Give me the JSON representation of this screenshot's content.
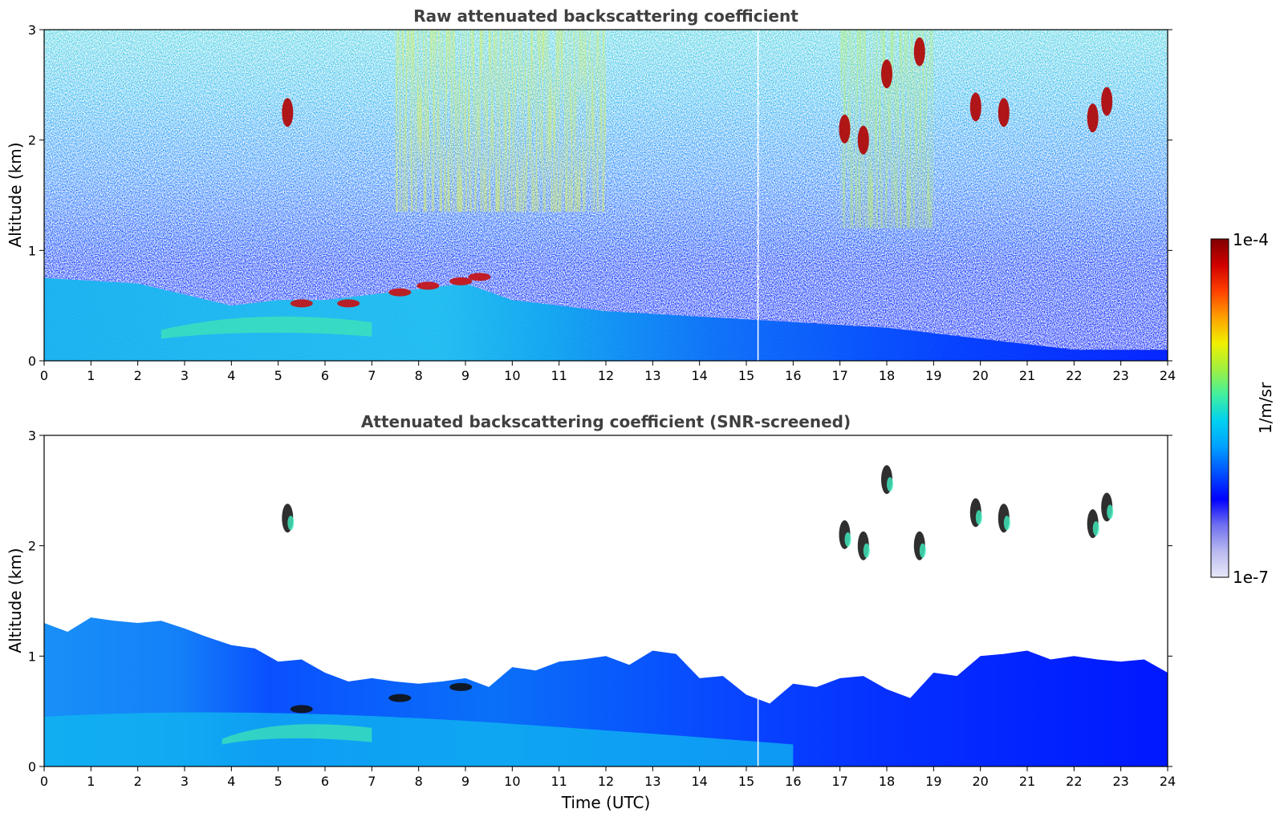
{
  "colorbar": {
    "max_label": "1e-4",
    "min_label": "1e-7",
    "unit_label": "1/m/sr",
    "stops": [
      "#e8e8f8",
      "#b8b8f0",
      "#7070f0",
      "#0000ff",
      "#0050ff",
      "#00a0ff",
      "#00d0f0",
      "#40f0a0",
      "#a0f040",
      "#f0f000",
      "#ffa000",
      "#ff4000",
      "#d00000",
      "#800000"
    ]
  },
  "chart_data": [
    {
      "type": "heatmap",
      "title": "Raw attenuated backscattering coefficient",
      "xlabel": "",
      "ylabel": "Altitude (km)",
      "xlim": [
        0,
        24
      ],
      "ylim": [
        0,
        3
      ],
      "x_ticks": [
        "0",
        "1",
        "2",
        "3",
        "4",
        "5",
        "6",
        "7",
        "8",
        "9",
        "10",
        "11",
        "12",
        "13",
        "14",
        "15",
        "16",
        "17",
        "18",
        "19",
        "20",
        "21",
        "22",
        "23",
        "24"
      ],
      "y_ticks": [
        "0",
        "1",
        "2",
        "3"
      ],
      "z_range": [
        1e-07,
        0.0001
      ],
      "z_scale": "log",
      "boundary_layer_top_km": [
        [
          0,
          0.75
        ],
        [
          2,
          0.7
        ],
        [
          3,
          0.6
        ],
        [
          4,
          0.5
        ],
        [
          5,
          0.55
        ],
        [
          6,
          0.55
        ],
        [
          7,
          0.6
        ],
        [
          8,
          0.65
        ],
        [
          9,
          0.7
        ],
        [
          10,
          0.55
        ],
        [
          12,
          0.45
        ],
        [
          14,
          0.4
        ],
        [
          16,
          0.35
        ],
        [
          18,
          0.3
        ],
        [
          20,
          0.2
        ],
        [
          22,
          0.1
        ],
        [
          24,
          0.1
        ]
      ],
      "cloud_features": [
        {
          "t": 5.2,
          "z": 2.25
        },
        {
          "t": 5.5,
          "z": 0.52
        },
        {
          "t": 6.5,
          "z": 0.52
        },
        {
          "t": 7.6,
          "z": 0.62
        },
        {
          "t": 8.2,
          "z": 0.68
        },
        {
          "t": 8.9,
          "z": 0.72
        },
        {
          "t": 9.3,
          "z": 0.76
        },
        {
          "t": 17.1,
          "z": 2.1
        },
        {
          "t": 17.5,
          "z": 2.0
        },
        {
          "t": 18.0,
          "z": 2.6
        },
        {
          "t": 18.7,
          "z": 2.8
        },
        {
          "t": 19.9,
          "z": 2.3
        },
        {
          "t": 20.5,
          "z": 2.25
        },
        {
          "t": 22.4,
          "z": 2.2
        },
        {
          "t": 22.7,
          "z": 2.35
        }
      ]
    },
    {
      "type": "heatmap",
      "title": "Attenuated backscattering coefficient (SNR-screened)",
      "xlabel": "Time (UTC)",
      "ylabel": "Altitude (km)",
      "xlim": [
        0,
        24
      ],
      "ylim": [
        0,
        3
      ],
      "x_ticks": [
        "0",
        "1",
        "2",
        "3",
        "4",
        "5",
        "6",
        "7",
        "8",
        "9",
        "10",
        "11",
        "12",
        "13",
        "14",
        "15",
        "16",
        "17",
        "18",
        "19",
        "20",
        "21",
        "22",
        "23",
        "24"
      ],
      "y_ticks": [
        "0",
        "1",
        "2",
        "3"
      ],
      "z_range": [
        1e-07,
        0.0001
      ],
      "z_scale": "log",
      "signal_top_km": [
        [
          0,
          1.3
        ],
        [
          1,
          1.35
        ],
        [
          2,
          1.3
        ],
        [
          3,
          1.25
        ],
        [
          4,
          1.1
        ],
        [
          5,
          0.95
        ],
        [
          6,
          0.85
        ],
        [
          7,
          0.8
        ],
        [
          8,
          0.75
        ],
        [
          9,
          0.8
        ],
        [
          10,
          0.9
        ],
        [
          11,
          0.95
        ],
        [
          12,
          1.0
        ],
        [
          13,
          1.05
        ],
        [
          14,
          0.8
        ],
        [
          15,
          0.65
        ],
        [
          16,
          0.75
        ],
        [
          17,
          0.8
        ],
        [
          18,
          0.7
        ],
        [
          19,
          0.85
        ],
        [
          20,
          1.0
        ],
        [
          21,
          1.05
        ],
        [
          22,
          1.0
        ],
        [
          23,
          0.95
        ],
        [
          24,
          0.85
        ]
      ],
      "cloud_features": [
        {
          "t": 5.2,
          "z": 2.25
        },
        {
          "t": 5.5,
          "z": 0.52
        },
        {
          "t": 7.6,
          "z": 0.62
        },
        {
          "t": 8.9,
          "z": 0.72
        },
        {
          "t": 17.1,
          "z": 2.1
        },
        {
          "t": 17.5,
          "z": 2.0
        },
        {
          "t": 18.0,
          "z": 2.6
        },
        {
          "t": 18.7,
          "z": 2.0
        },
        {
          "t": 19.9,
          "z": 2.3
        },
        {
          "t": 20.5,
          "z": 2.25
        },
        {
          "t": 22.4,
          "z": 2.2
        },
        {
          "t": 22.7,
          "z": 2.35
        }
      ]
    }
  ]
}
